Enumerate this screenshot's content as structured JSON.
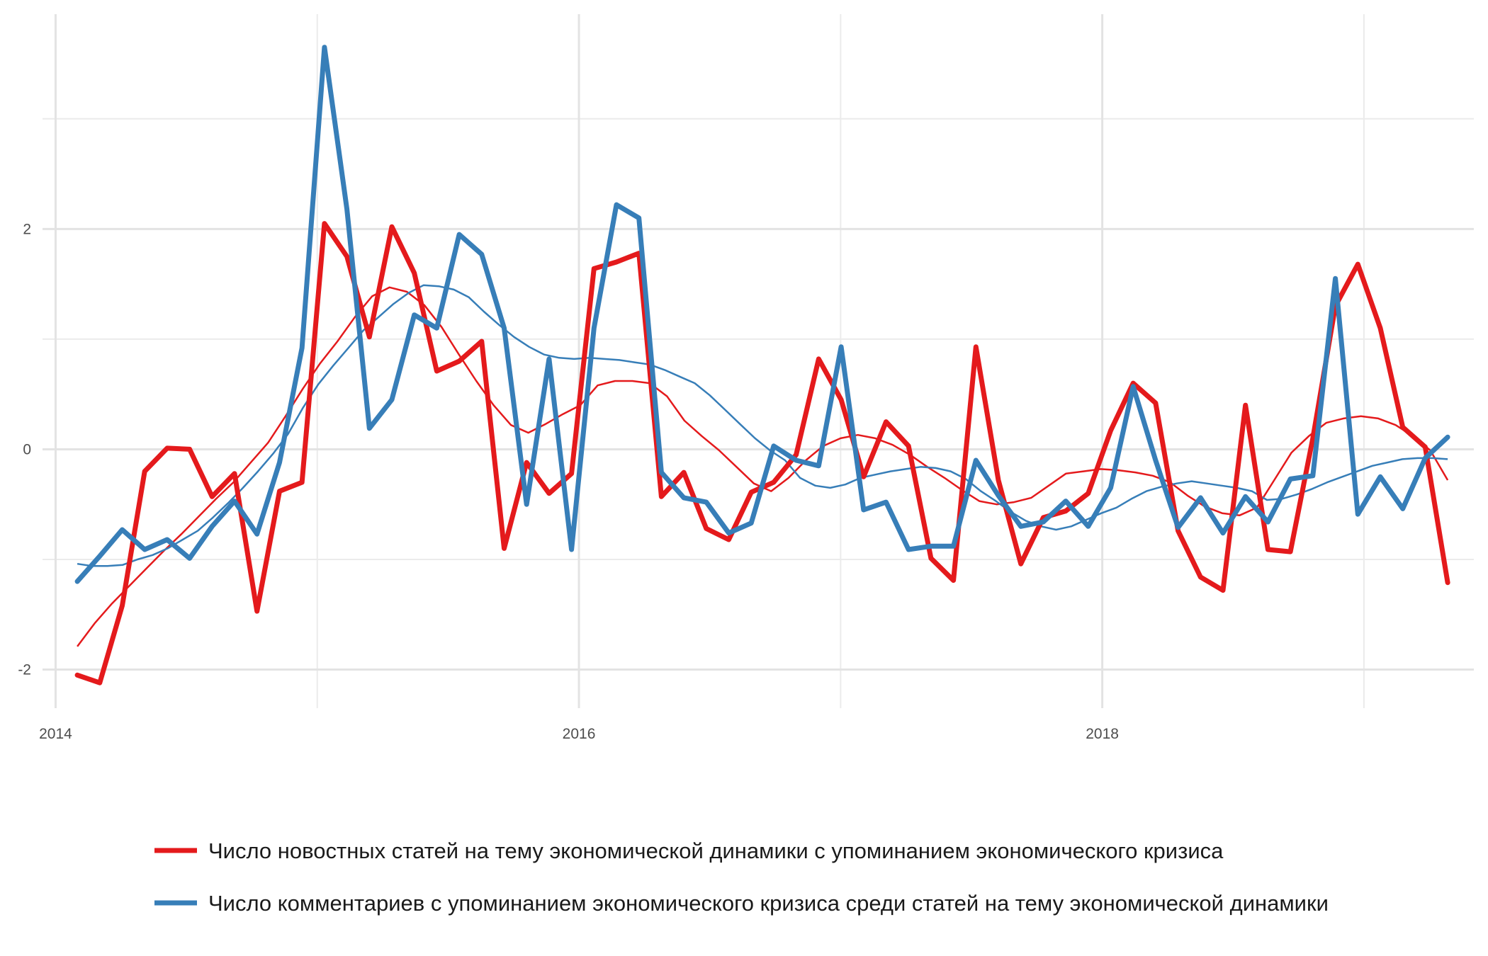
{
  "chart_data": {
    "type": "line",
    "title": "",
    "xlabel": "",
    "ylabel": "",
    "xlim": [
      2013.95,
      2019.42
    ],
    "ylim": [
      -2.35,
      3.95
    ],
    "x_ticks": [
      2014,
      2016,
      2018
    ],
    "x_tick_labels": [
      "2014",
      "2016",
      "2018"
    ],
    "x_minor_ticks": [
      2015,
      2017,
      2019
    ],
    "y_ticks": [
      -2,
      0,
      2
    ],
    "y_tick_labels": [
      "-2",
      "0",
      "2"
    ],
    "y_minor_ticks": [
      -1,
      1,
      3
    ],
    "grid": true,
    "legend_position": "bottom",
    "x_start": 2014.083,
    "x_step": 0.08333,
    "series": [
      {
        "name": "Число новостных статей на тему экономической динамики с упоминанием экономического кризиса",
        "color": "#E41A1C",
        "values": [
          -2.05,
          -2.12,
          -1.42,
          -0.2,
          0.01,
          0.0,
          -0.43,
          -0.22,
          -1.47,
          -0.38,
          -0.3,
          2.05,
          1.75,
          1.02,
          2.02,
          1.6,
          0.71,
          0.8,
          0.98,
          -0.9,
          -0.12,
          -0.4,
          -0.22,
          1.64,
          1.7,
          1.78,
          -0.43,
          -0.21,
          -0.72,
          -0.82,
          -0.39,
          -0.3,
          -0.05,
          0.82,
          0.45,
          -0.25,
          0.25,
          0.03,
          -0.99,
          -1.19,
          0.93,
          -0.28,
          -1.04,
          -0.62,
          -0.56,
          -0.4,
          0.17,
          0.6,
          0.42,
          -0.74,
          -1.16,
          -1.28,
          0.4,
          -0.91,
          -0.93,
          0.1,
          1.3,
          1.68,
          1.1,
          0.2,
          0.02,
          -1.21
        ],
        "trend": [
          -1.79,
          -1.58,
          -1.4,
          -1.24,
          -1.08,
          -0.92,
          -0.77,
          -0.61,
          -0.45,
          -0.3,
          -0.12,
          0.06,
          0.3,
          0.55,
          0.78,
          0.98,
          1.2,
          1.39,
          1.47,
          1.43,
          1.31,
          1.11,
          0.86,
          0.62,
          0.4,
          0.22,
          0.15,
          0.23,
          0.32,
          0.4,
          0.58,
          0.62,
          0.62,
          0.6,
          0.48,
          0.26,
          0.12,
          -0.01,
          -0.16,
          -0.31,
          -0.38,
          -0.26,
          -0.1,
          0.03,
          0.1,
          0.13,
          0.1,
          0.04,
          -0.05,
          -0.16,
          -0.26,
          -0.37,
          -0.47,
          -0.5,
          -0.48,
          -0.44,
          -0.33,
          -0.22,
          -0.2,
          -0.18,
          -0.19,
          -0.21,
          -0.24,
          -0.3,
          -0.42,
          -0.52,
          -0.58,
          -0.6,
          -0.53,
          -0.28,
          -0.03,
          0.12,
          0.24,
          0.28,
          0.3,
          0.28,
          0.22,
          0.12,
          -0.01,
          -0.28
        ]
      },
      {
        "name": "Число комментариев с упоминанием экономического кризиса среди статей на тему экономической динамики",
        "color": "#377EB8",
        "values": [
          -1.2,
          -0.97,
          -0.73,
          -0.91,
          -0.82,
          -0.99,
          -0.7,
          -0.47,
          -0.77,
          -0.12,
          0.92,
          3.65,
          2.18,
          0.19,
          0.45,
          1.22,
          1.1,
          1.95,
          1.77,
          1.1,
          -0.5,
          0.82,
          -0.91,
          1.1,
          2.22,
          2.1,
          -0.21,
          -0.44,
          -0.48,
          -0.76,
          -0.67,
          0.03,
          -0.1,
          -0.15,
          0.93,
          -0.55,
          -0.48,
          -0.91,
          -0.88,
          -0.88,
          -0.1,
          -0.42,
          -0.7,
          -0.66,
          -0.47,
          -0.7,
          -0.35,
          0.57,
          -0.1,
          -0.71,
          -0.44,
          -0.76,
          -0.43,
          -0.66,
          -0.27,
          -0.24,
          1.55,
          -0.59,
          -0.25,
          -0.54,
          -0.08,
          0.11
        ],
        "trend": [
          -1.04,
          -1.06,
          -1.06,
          -1.05,
          -1.0,
          -0.96,
          -0.9,
          -0.82,
          -0.74,
          -0.62,
          -0.49,
          -0.35,
          -0.2,
          -0.04,
          0.14,
          0.38,
          0.59,
          0.76,
          0.92,
          1.08,
          1.2,
          1.32,
          1.42,
          1.49,
          1.48,
          1.45,
          1.38,
          1.25,
          1.13,
          1.02,
          0.93,
          0.86,
          0.83,
          0.82,
          0.83,
          0.82,
          0.81,
          0.79,
          0.77,
          0.72,
          0.66,
          0.6,
          0.49,
          0.36,
          0.23,
          0.1,
          -0.01,
          -0.1,
          -0.26,
          -0.33,
          -0.35,
          -0.32,
          -0.26,
          -0.23,
          -0.2,
          -0.18,
          -0.16,
          -0.17,
          -0.2,
          -0.27,
          -0.38,
          -0.47,
          -0.57,
          -0.65,
          -0.7,
          -0.73,
          -0.7,
          -0.64,
          -0.58,
          -0.53,
          -0.45,
          -0.38,
          -0.34,
          -0.31,
          -0.29,
          -0.31,
          -0.33,
          -0.35,
          -0.38,
          -0.46,
          -0.45,
          -0.41,
          -0.36,
          -0.3,
          -0.25,
          -0.2,
          -0.15,
          -0.12,
          -0.09,
          -0.08,
          -0.08,
          -0.09
        ]
      }
    ]
  }
}
